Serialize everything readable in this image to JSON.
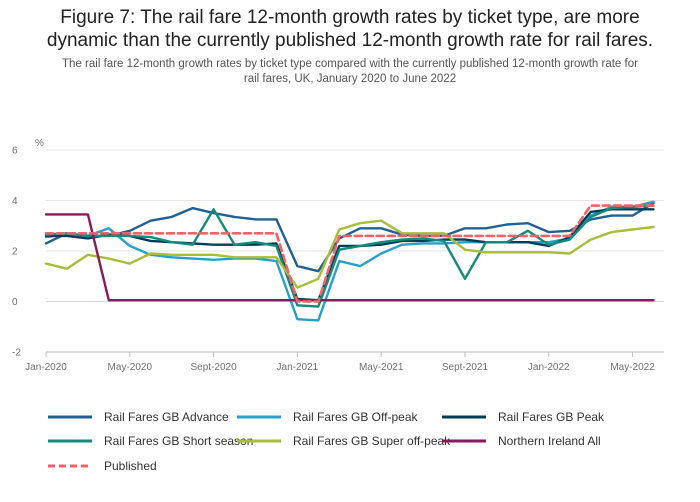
{
  "title_line1": "Figure 7: The rail fare 12-month growth rates by ticket type, are more",
  "title_line2": "dynamic than the currently published 12-month growth rate for rail fares.",
  "subtitle_line1": "The rail fare 12-month growth rates by ticket type compared with the currently published 12-month growth rate for",
  "subtitle_line2": "rail fares, UK, January 2020 to June 2022",
  "chart_data": {
    "type": "line",
    "ylabel": "%",
    "ylim": [
      -2,
      6
    ],
    "yticks": [
      -2,
      0,
      2,
      4,
      6
    ],
    "xlim": [
      0,
      29.5
    ],
    "xticks": [
      {
        "index": 0,
        "label": "Jan-2020"
      },
      {
        "index": 4,
        "label": "May-2020"
      },
      {
        "index": 8,
        "label": "Sept-2020"
      },
      {
        "index": 12,
        "label": "Jan-2021"
      },
      {
        "index": 16,
        "label": "May-2021"
      },
      {
        "index": 20,
        "label": "Sept-2021"
      },
      {
        "index": 24,
        "label": "Jan-2022"
      },
      {
        "index": 28,
        "label": "May-2022"
      }
    ],
    "grid": true,
    "legend_position": "bottom",
    "series": [
      {
        "name": "Rail Fares GB Advance",
        "color": "#206095",
        "dashed": false,
        "values": [
          2.3,
          2.7,
          2.6,
          2.6,
          2.8,
          3.2,
          3.35,
          3.7,
          3.5,
          3.35,
          3.25,
          3.25,
          1.4,
          1.2,
          2.5,
          2.9,
          2.9,
          2.65,
          2.6,
          2.6,
          2.9,
          2.9,
          3.05,
          3.1,
          2.75,
          2.8,
          3.25,
          3.4,
          3.4,
          3.9
        ]
      },
      {
        "name": "Rail Fares GB Off-peak",
        "color": "#27a0cc",
        "dashed": false,
        "values": [
          2.55,
          2.65,
          2.6,
          2.9,
          2.2,
          1.85,
          1.75,
          1.7,
          1.65,
          1.7,
          1.7,
          1.6,
          -0.7,
          -0.75,
          1.6,
          1.4,
          1.9,
          2.25,
          2.3,
          2.3,
          2.35,
          2.35,
          2.35,
          2.35,
          2.35,
          2.5,
          3.4,
          3.75,
          3.75,
          3.95
        ]
      },
      {
        "name": "Rail Fares GB Peak",
        "color": "#003c57",
        "dashed": false,
        "values": [
          2.6,
          2.6,
          2.5,
          2.65,
          2.6,
          2.4,
          2.35,
          2.3,
          2.25,
          2.25,
          2.25,
          2.3,
          0.1,
          0.05,
          2.2,
          2.2,
          2.25,
          2.4,
          2.4,
          2.45,
          2.45,
          2.35,
          2.35,
          2.35,
          2.2,
          2.55,
          3.55,
          3.65,
          3.65,
          3.65
        ]
      },
      {
        "name": "Rail Fares GB Short season",
        "color": "#118c7b",
        "dashed": false,
        "values": [
          2.65,
          2.7,
          2.6,
          2.6,
          2.6,
          2.55,
          2.35,
          2.25,
          3.65,
          2.25,
          2.35,
          2.2,
          -0.15,
          -0.2,
          2.05,
          2.2,
          2.35,
          2.45,
          2.5,
          2.4,
          0.9,
          2.35,
          2.35,
          2.8,
          2.25,
          2.45,
          3.35,
          3.7,
          3.75,
          3.8
        ]
      },
      {
        "name": "Rail Fares GB Super off-peak",
        "color": "#a8bd3a",
        "dashed": false,
        "values": [
          1.5,
          1.3,
          1.85,
          1.7,
          1.5,
          1.9,
          1.85,
          1.85,
          1.85,
          1.75,
          1.75,
          1.75,
          0.55,
          0.9,
          2.85,
          3.1,
          3.2,
          2.7,
          2.7,
          2.7,
          2.05,
          1.95,
          1.95,
          1.95,
          1.95,
          1.9,
          2.45,
          2.75,
          2.85,
          2.95
        ]
      },
      {
        "name": "Northern Ireland All",
        "color": "#871a5b",
        "dashed": false,
        "values": [
          3.45,
          3.45,
          3.45,
          0.05,
          0.05,
          0.05,
          0.05,
          0.05,
          0.05,
          0.05,
          0.05,
          0.05,
          0.05,
          0.05,
          0.05,
          0.05,
          0.05,
          0.05,
          0.05,
          0.05,
          0.05,
          0.05,
          0.05,
          0.05,
          0.05,
          0.05,
          0.05,
          0.05,
          0.05,
          0.05
        ]
      },
      {
        "name": "Published",
        "color": "#f66068",
        "dashed": true,
        "values": [
          2.7,
          2.7,
          2.7,
          2.7,
          2.7,
          2.7,
          2.7,
          2.7,
          2.7,
          2.7,
          2.7,
          2.7,
          0.0,
          0.0,
          2.6,
          2.6,
          2.6,
          2.6,
          2.6,
          2.6,
          2.6,
          2.6,
          2.6,
          2.6,
          2.6,
          2.6,
          3.8,
          3.8,
          3.8,
          3.8
        ]
      }
    ]
  }
}
